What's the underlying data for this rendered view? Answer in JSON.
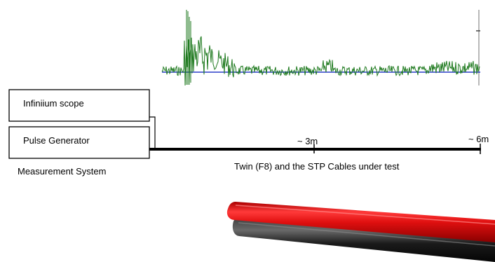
{
  "boxes": {
    "scope": "Infiniium scope",
    "generator": "Pulse Generator"
  },
  "system_label": "Measurement System",
  "markers": {
    "mid": "~ 3m",
    "end": "~ 6m"
  },
  "cable_caption": "Twin (F8) and the STP Cables under test",
  "colors": {
    "trace": "#1f7a1f",
    "baseline": "#2b3fc9",
    "wire_red": "#e01010",
    "wire_black": "#141414"
  }
}
